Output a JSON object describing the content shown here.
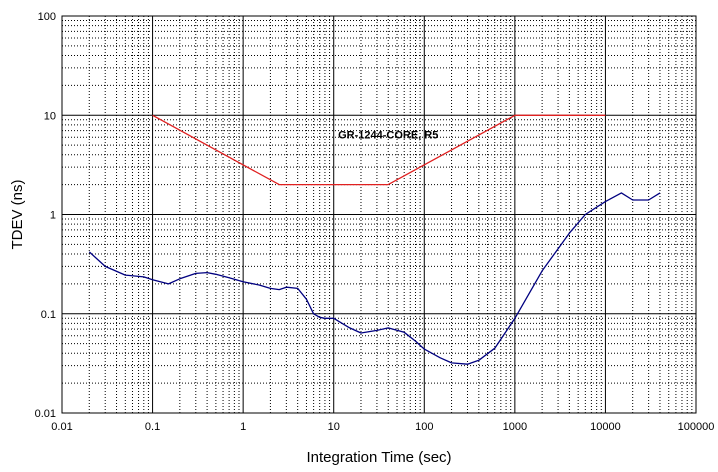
{
  "chart_data": {
    "type": "line",
    "title": "",
    "xlabel": "Integration Time (sec)",
    "ylabel": "TDEV (ns)",
    "xscale": "log",
    "yscale": "log",
    "xlim": [
      0.01,
      100000
    ],
    "ylim": [
      0.01,
      100
    ],
    "grid": true,
    "x_tick_labels": [
      "0.01",
      "0.1",
      "1",
      "10",
      "100",
      "1000",
      "10000",
      "100000"
    ],
    "y_tick_labels": [
      "0.01",
      "0.1",
      "1",
      "10",
      "100"
    ],
    "annotations": [
      {
        "text": "GR-1244-CORE, R5",
        "x": 40,
        "y": 5.8
      }
    ],
    "series": [
      {
        "color": "#e02020",
        "x": [
          0.1,
          2.5,
          40,
          1000,
          10000
        ],
        "y": [
          10,
          2,
          2,
          10,
          10
        ]
      },
      {
        "color": "#000080",
        "x": [
          0.02,
          0.03,
          0.05,
          0.08,
          0.1,
          0.15,
          0.2,
          0.3,
          0.4,
          0.5,
          0.7,
          1,
          1.5,
          2,
          2.5,
          3,
          4,
          5,
          6,
          7,
          8,
          10,
          15,
          20,
          30,
          40,
          60,
          80,
          100,
          150,
          200,
          300,
          400,
          600,
          1000,
          2000,
          4000,
          6000,
          10000,
          15000,
          20000,
          30000,
          40000
        ],
        "y": [
          0.42,
          0.3,
          0.245,
          0.235,
          0.22,
          0.2,
          0.225,
          0.255,
          0.26,
          0.25,
          0.23,
          0.21,
          0.195,
          0.18,
          0.175,
          0.185,
          0.18,
          0.14,
          0.1,
          0.092,
          0.09,
          0.09,
          0.072,
          0.064,
          0.068,
          0.072,
          0.065,
          0.053,
          0.044,
          0.036,
          0.032,
          0.031,
          0.034,
          0.045,
          0.09,
          0.27,
          0.65,
          1.0,
          1.35,
          1.65,
          1.4,
          1.4,
          1.65
        ]
      }
    ]
  }
}
